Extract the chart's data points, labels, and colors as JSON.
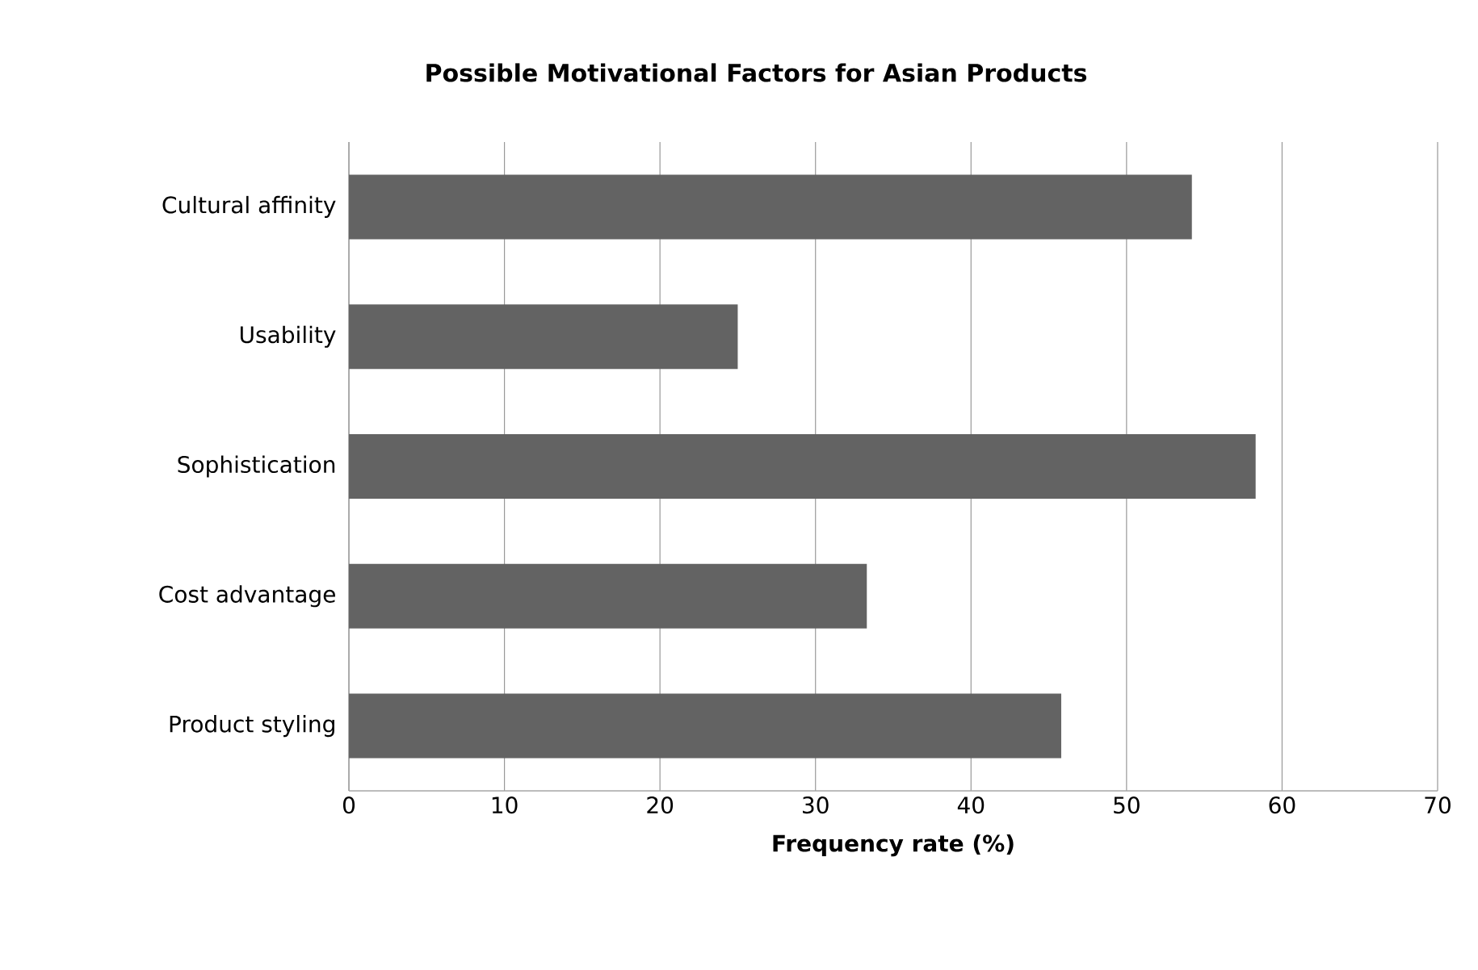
{
  "chart_data": {
    "type": "bar",
    "orientation": "horizontal",
    "title": "Possible Motivational Factors for Asian Products",
    "xlabel": "Frequency rate (%)",
    "categories": [
      "Cultural affinity",
      "Usability",
      "Sophistication",
      "Cost advantage",
      "Product styling"
    ],
    "values": [
      54.2,
      25,
      58.3,
      33.3,
      45.8
    ],
    "color": "#636363",
    "xlim": [
      0,
      70
    ],
    "xticks": [
      0,
      10,
      20,
      30,
      40,
      50,
      60,
      70
    ],
    "grid": "x"
  }
}
